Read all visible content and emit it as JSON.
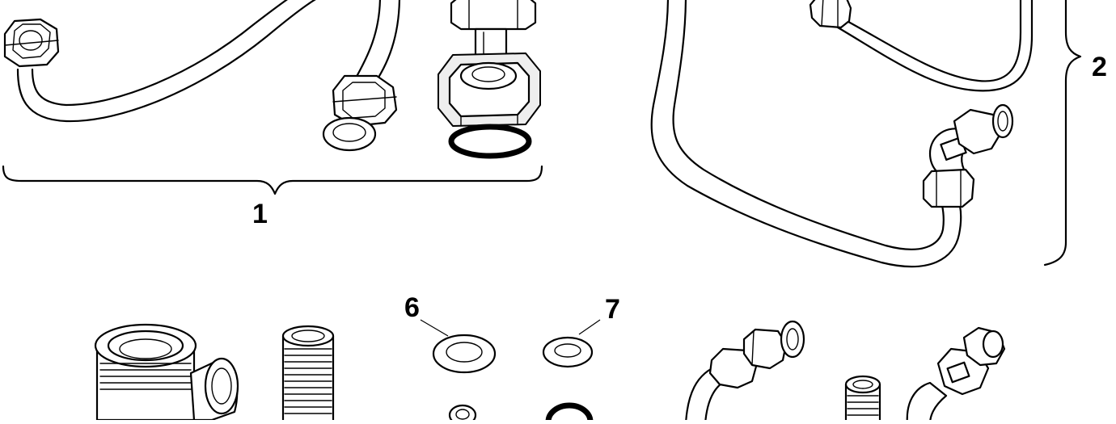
{
  "callouts": {
    "c1": "1",
    "c2": "2",
    "c6": "6",
    "c7": "7"
  },
  "colors": {
    "line": "#000000",
    "background": "#ffffff",
    "part_fill": "#ffffff",
    "shade": "#eeeeee"
  },
  "icons": {
    "hex_nut": "hex-nut-icon",
    "washer": "washer-icon",
    "o_ring": "o-ring-icon",
    "elbow": "elbow-fitting-icon",
    "tee": "tee-fitting-icon",
    "nipple": "threaded-nipple-icon"
  }
}
